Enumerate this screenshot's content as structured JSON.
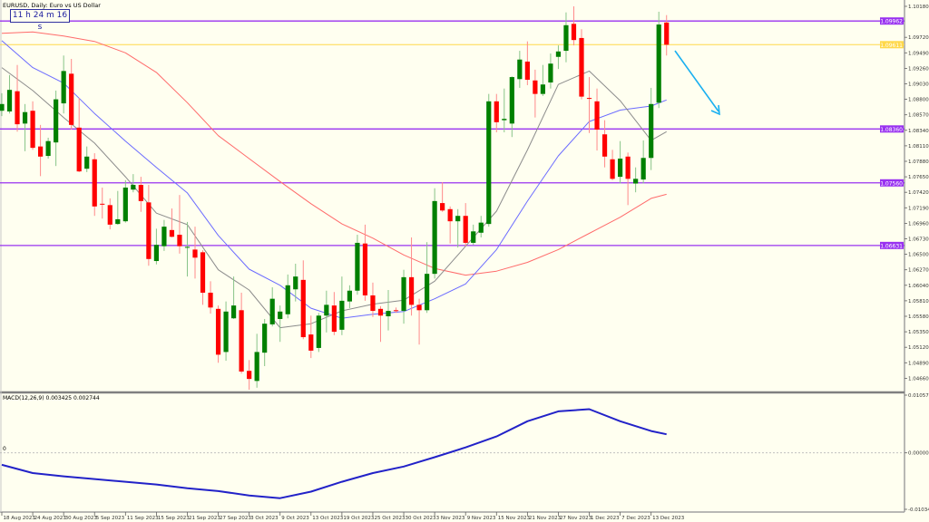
{
  "header": {
    "title": "EURUSD, Daily:  Euro vs US Dollar",
    "timer": "11 h 24 m 16 s"
  },
  "macd_panel": {
    "label": "MACD(12,26,9) 0.003425 0.002744",
    "zero_label": "0",
    "axis_ticks": [
      {
        "value": 0.010575,
        "label": "0.010575"
      },
      {
        "value": 0.0,
        "label": "0.000000"
      },
      {
        "value": -0.010345,
        "label": "-0.010345"
      }
    ]
  },
  "colors": {
    "background": "#fffff0",
    "bull": "#008000",
    "bear": "#ff0000",
    "bull_wick": "#88c488",
    "bear_wick": "#ff8a8a",
    "level_line": "#9932f0",
    "bid_line": "#ffd84a",
    "ma_fast": "#8c8c8c",
    "ma_mid": "#6b6bff",
    "ma_slow": "#ff6b6b",
    "macd": "#2222c8",
    "arrow": "#1ab0f0"
  },
  "chart_data": {
    "type": "candlestick",
    "symbol": "EURUSD",
    "timeframe": "Daily",
    "ylim": [
      1.0443,
      1.10274
    ],
    "y_ticks": [
      "1.10180",
      "1.09720",
      "1.09490",
      "1.09260",
      "1.09030",
      "1.08800",
      "1.08570",
      "1.08340",
      "1.08110",
      "1.07880",
      "1.07650",
      "1.07420",
      "1.07190",
      "1.06960",
      "1.06730",
      "1.06500",
      "1.06270",
      "1.06040",
      "1.05810",
      "1.05580",
      "1.05350",
      "1.05120",
      "1.04890",
      "1.04660"
    ],
    "x_ticks": [
      "18 Aug 2023",
      "24 Aug 2023",
      "30 Aug 2023",
      "5 Sep 2023",
      "11 Sep 2023",
      "15 Sep 2023",
      "21 Sep 2023",
      "27 Sep 2023",
      "3 Oct 2023",
      "9 Oct 2023",
      "13 Oct 2023",
      "19 Oct 2023",
      "25 Oct 2023",
      "30 Oct 2023",
      "3 Nov 2023",
      "9 Nov 2023",
      "15 Nov 2023",
      "21 Nov 2023",
      "27 Nov 2023",
      "1 Dec 2023",
      "7 Dec 2023",
      "13 Dec 2023"
    ],
    "x_tick_every_bars": 4,
    "ohlc": [
      [
        1.0863,
        1.0889,
        1.0855,
        1.0873
      ],
      [
        1.0862,
        1.0916,
        1.0859,
        1.0894
      ],
      [
        1.0892,
        1.0931,
        1.0832,
        1.0843
      ],
      [
        1.0844,
        1.0873,
        1.0803,
        1.0861
      ],
      [
        1.0863,
        1.0877,
        1.0805,
        1.0808
      ],
      [
        1.081,
        1.0842,
        1.0766,
        1.0795
      ],
      [
        1.0796,
        1.0823,
        1.0792,
        1.0818
      ],
      [
        1.0816,
        1.0893,
        1.0781,
        1.088
      ],
      [
        1.0874,
        1.0945,
        1.0859,
        1.0922
      ],
      [
        1.0918,
        1.094,
        1.0835,
        1.0842
      ],
      [
        1.0838,
        1.0882,
        1.0772,
        1.0773
      ],
      [
        1.0777,
        1.081,
        1.0772,
        1.0795
      ],
      [
        1.0791,
        1.08,
        1.0707,
        1.0721
      ],
      [
        1.0725,
        1.0749,
        1.0703,
        1.0724
      ],
      [
        1.0723,
        1.0733,
        1.0687,
        1.0694
      ],
      [
        1.0695,
        1.0744,
        1.0694,
        1.0702
      ],
      [
        1.0699,
        1.076,
        1.0697,
        1.0749
      ],
      [
        1.0746,
        1.0769,
        1.0742,
        1.0753
      ],
      [
        1.0753,
        1.0765,
        1.0713,
        1.0729
      ],
      [
        1.0727,
        1.0753,
        1.0633,
        1.0643
      ],
      [
        1.064,
        1.0688,
        1.0635,
        1.0664
      ],
      [
        1.0662,
        1.0701,
        1.0655,
        1.0691
      ],
      [
        1.0686,
        1.0718,
        1.0675,
        1.0676
      ],
      [
        1.0679,
        1.0738,
        1.0651,
        1.0662
      ],
      [
        1.066,
        1.0698,
        1.0617,
        1.0661
      ],
      [
        1.0657,
        1.0691,
        1.0614,
        1.0645
      ],
      [
        1.0653,
        1.0656,
        1.0575,
        1.0593
      ],
      [
        1.0593,
        1.061,
        1.0562,
        1.0571
      ],
      [
        1.0569,
        1.0574,
        1.0489,
        1.0501
      ],
      [
        1.0505,
        1.058,
        1.0492,
        1.0565
      ],
      [
        1.0555,
        1.0617,
        1.0554,
        1.0574
      ],
      [
        1.0567,
        1.0593,
        1.0473,
        1.0476
      ],
      [
        1.0477,
        1.0493,
        1.0449,
        1.0465
      ],
      [
        1.0462,
        1.0532,
        1.0452,
        1.0505
      ],
      [
        1.0504,
        1.0554,
        1.0484,
        1.0547
      ],
      [
        1.0546,
        1.0601,
        1.0543,
        1.0584
      ],
      [
        1.0554,
        1.0574,
        1.052,
        1.0565
      ],
      [
        1.0561,
        1.062,
        1.0555,
        1.0604
      ],
      [
        1.0598,
        1.0636,
        1.058,
        1.0617
      ],
      [
        1.0612,
        1.0641,
        1.0524,
        1.0527
      ],
      [
        1.0531,
        1.0559,
        1.0496,
        1.0507
      ],
      [
        1.0511,
        1.0563,
        1.0505,
        1.0559
      ],
      [
        1.0559,
        1.0596,
        1.0534,
        1.0575
      ],
      [
        1.0574,
        1.0594,
        1.053,
        1.0535
      ],
      [
        1.0538,
        1.0617,
        1.053,
        1.0581
      ],
      [
        1.058,
        1.0604,
        1.057,
        1.0596
      ],
      [
        1.0596,
        1.0679,
        1.059,
        1.0667
      ],
      [
        1.0666,
        1.0694,
        1.0581,
        1.0589
      ],
      [
        1.0589,
        1.0608,
        1.0557,
        1.0566
      ],
      [
        1.0569,
        1.0573,
        1.052,
        1.0559
      ],
      [
        1.0558,
        1.0597,
        1.0537,
        1.0566
      ],
      [
        1.0567,
        1.0571,
        1.0563,
        1.0566
      ],
      [
        1.0566,
        1.0627,
        1.0547,
        1.0616
      ],
      [
        1.0616,
        1.0675,
        1.0559,
        1.0575
      ],
      [
        1.0575,
        1.0584,
        1.0516,
        1.0567
      ],
      [
        1.0567,
        1.0668,
        1.0563,
        1.0621
      ],
      [
        1.0621,
        1.0748,
        1.0614,
        1.0729
      ],
      [
        1.0726,
        1.0757,
        1.0713,
        1.0715
      ],
      [
        1.0717,
        1.0721,
        1.0666,
        1.0699
      ],
      [
        1.0699,
        1.0717,
        1.066,
        1.0707
      ],
      [
        1.0707,
        1.0726,
        1.0662,
        1.0667
      ],
      [
        1.0667,
        1.0694,
        1.0664,
        1.0684
      ],
      [
        1.0682,
        1.0707,
        1.0675,
        1.0697
      ],
      [
        1.0695,
        1.0888,
        1.0691,
        1.0877
      ],
      [
        1.0877,
        1.0888,
        1.0831,
        1.0846
      ],
      [
        1.0849,
        1.0896,
        1.0831,
        1.0851
      ],
      [
        1.0844,
        1.0914,
        1.0824,
        1.0913
      ],
      [
        1.091,
        1.0952,
        1.0897,
        1.0939
      ],
      [
        1.0936,
        1.0966,
        1.0901,
        1.0909
      ],
      [
        1.0908,
        1.0924,
        1.0853,
        1.0888
      ],
      [
        1.0888,
        1.0931,
        1.0885,
        1.0902
      ],
      [
        1.0905,
        1.0948,
        1.0896,
        1.0933
      ],
      [
        1.0943,
        1.096,
        1.0925,
        1.0951
      ],
      [
        1.0952,
        1.1009,
        1.0935,
        1.099
      ],
      [
        1.0992,
        1.1018,
        1.096,
        1.0968
      ],
      [
        1.0971,
        1.0984,
        1.088,
        1.0884
      ],
      [
        1.0882,
        1.0913,
        1.083,
        1.0881
      ],
      [
        1.0877,
        1.0896,
        1.0804,
        1.0835
      ],
      [
        1.0828,
        1.0849,
        1.0779,
        1.0795
      ],
      [
        1.0791,
        1.0805,
        1.076,
        1.0762
      ],
      [
        1.0765,
        1.0818,
        1.0755,
        1.0792
      ],
      [
        1.0795,
        1.0801,
        1.0723,
        1.0762
      ],
      [
        1.0755,
        1.0779,
        1.0742,
        1.0762
      ],
      [
        1.0761,
        1.0819,
        1.0755,
        1.0793
      ],
      [
        1.0793,
        1.0897,
        1.0775,
        1.0873
      ],
      [
        1.0875,
        1.101,
        1.0867,
        1.0991
      ],
      [
        1.0994,
        1.1005,
        1.0945,
        1.0961
      ]
    ],
    "moving_averages_at_x_ticks_then_last_bar": {
      "fast": [
        1.0927,
        1.0893,
        1.0853,
        1.0815,
        1.0765,
        1.0711,
        1.0694,
        1.0627,
        1.0597,
        1.0541,
        1.0547,
        1.0566,
        1.0576,
        1.0582,
        1.061,
        1.0662,
        1.0714,
        1.0805,
        1.0902,
        1.0922,
        1.0878,
        1.0819,
        1.0832
      ],
      "mid": [
        1.0967,
        1.0927,
        1.0904,
        1.0859,
        1.0818,
        1.0779,
        1.0741,
        1.0678,
        1.0628,
        1.0604,
        1.057,
        1.0555,
        1.0561,
        1.0565,
        1.0584,
        1.0606,
        1.0657,
        1.0729,
        1.0796,
        1.0847,
        1.0864,
        1.087,
        1.0879
      ],
      "slow": [
        1.0978,
        1.098,
        1.0974,
        1.0966,
        1.0949,
        1.092,
        1.0875,
        1.0826,
        1.0792,
        1.0758,
        1.0725,
        1.0695,
        1.0674,
        1.0649,
        1.0629,
        1.0619,
        1.0625,
        1.0638,
        1.0657,
        1.0681,
        1.0705,
        1.0733,
        1.0739
      ]
    },
    "macd_at_x_ticks_then_last_bar": [
      -0.0022,
      -0.0037,
      -0.0043,
      -0.0048,
      -0.0053,
      -0.0058,
      -0.0065,
      -0.007,
      -0.0078,
      -0.0083,
      -0.0071,
      -0.0053,
      -0.0037,
      -0.0025,
      -0.0008,
      0.001,
      0.003,
      0.0058,
      0.0076,
      0.008,
      0.0058,
      0.004,
      0.0034
    ],
    "macd_ylim": [
      -0.010345,
      0.010575
    ],
    "levels": [
      {
        "price": 1.09962,
        "label": "1.09962",
        "kind": "level"
      },
      {
        "price": 1.09611,
        "label": "1.09611",
        "kind": "bid"
      },
      {
        "price": 1.0836,
        "label": "1.08360",
        "kind": "level"
      },
      {
        "price": 1.0756,
        "label": "1.07560",
        "kind": "level"
      },
      {
        "price": 1.06631,
        "label": "1.06631",
        "kind": "level"
      }
    ],
    "annotation": {
      "type": "arrow",
      "direction": "down-right"
    }
  }
}
